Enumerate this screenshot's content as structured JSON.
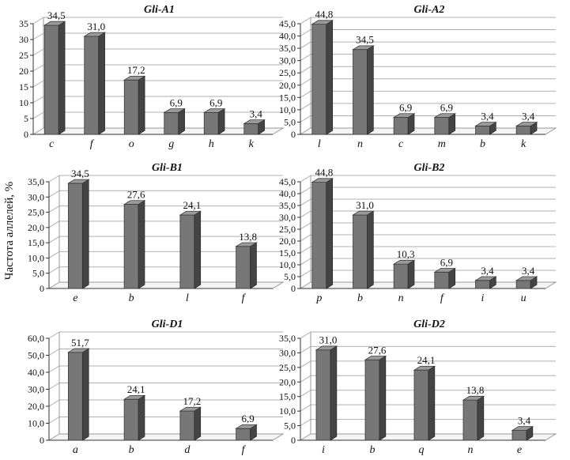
{
  "figure": {
    "ylabel": "Частота аллелей, %"
  },
  "chart_data": [
    {
      "type": "bar",
      "title": "Gli-A1",
      "categories": [
        "c",
        "f",
        "o",
        "g",
        "h",
        "k"
      ],
      "values": [
        34.5,
        31.0,
        17.2,
        6.9,
        6.9,
        3.4
      ],
      "value_labels": [
        "34,5",
        "31,0",
        "17,2",
        "6,9",
        "6,9",
        "3,4"
      ],
      "ylim": [
        0,
        35
      ],
      "yticks": [
        0,
        5,
        10,
        15,
        20,
        25,
        30,
        35
      ],
      "ytick_labels": [
        "0",
        "5",
        "10",
        "15",
        "20",
        "25",
        "30",
        "35"
      ],
      "grid": true,
      "color": "#7a7a7a"
    },
    {
      "type": "bar",
      "title": "Gli-A2",
      "categories": [
        "l",
        "n",
        "c",
        "m",
        "b",
        "k"
      ],
      "values": [
        44.8,
        34.5,
        6.9,
        6.9,
        3.4,
        3.4
      ],
      "value_labels": [
        "44,8",
        "34,5",
        "6,9",
        "6,9",
        "3,4",
        "3,4"
      ],
      "ylim": [
        0,
        45
      ],
      "yticks": [
        0,
        5,
        10,
        15,
        20,
        25,
        30,
        35,
        40,
        45
      ],
      "ytick_labels": [
        "0",
        "5,0",
        "10,0",
        "15,0",
        "20,0",
        "25,0",
        "30,0",
        "35,0",
        "40,0",
        "45,0"
      ],
      "grid": true,
      "color": "#7a7a7a"
    },
    {
      "type": "bar",
      "title": "Gli-B1",
      "categories": [
        "e",
        "b",
        "l",
        "f"
      ],
      "values": [
        34.5,
        27.6,
        24.1,
        13.8
      ],
      "value_labels": [
        "34,5",
        "27,6",
        "24,1",
        "13,8"
      ],
      "ylim": [
        0,
        35
      ],
      "yticks": [
        0,
        5,
        10,
        15,
        20,
        25,
        30,
        35
      ],
      "ytick_labels": [
        "0",
        "5,0",
        "10,0",
        "15,0",
        "20,0",
        "25,0",
        "30,0",
        "35,0"
      ],
      "grid": true,
      "color": "#7a7a7a"
    },
    {
      "type": "bar",
      "title": "Gli-B2",
      "categories": [
        "p",
        "b",
        "n",
        "f",
        "i",
        "u"
      ],
      "values": [
        44.8,
        31.0,
        10.3,
        6.9,
        3.4,
        3.4
      ],
      "value_labels": [
        "44,8",
        "31,0",
        "10,3",
        "6,9",
        "3,4",
        "3,4"
      ],
      "ylim": [
        0,
        45
      ],
      "yticks": [
        0,
        5,
        10,
        15,
        20,
        25,
        30,
        35,
        40,
        45
      ],
      "ytick_labels": [
        "0",
        "5,0",
        "10,0",
        "15,0",
        "20,0",
        "25,0",
        "30,0",
        "35,0",
        "40,0",
        "45,0"
      ],
      "grid": true,
      "color": "#7a7a7a"
    },
    {
      "type": "bar",
      "title": "Gli-D1",
      "categories": [
        "a",
        "b",
        "d",
        "f"
      ],
      "values": [
        51.7,
        24.1,
        17.2,
        6.9
      ],
      "value_labels": [
        "51,7",
        "24,1",
        "17,2",
        "6,9"
      ],
      "ylim": [
        0,
        60
      ],
      "yticks": [
        0,
        10,
        20,
        30,
        40,
        50,
        60
      ],
      "ytick_labels": [
        "0",
        "10,0",
        "20,0",
        "30,0",
        "40,0",
        "50,0",
        "60,0"
      ],
      "grid": true,
      "color": "#7a7a7a"
    },
    {
      "type": "bar",
      "title": "Gli-D2",
      "categories": [
        "i",
        "b",
        "q",
        "n",
        "e"
      ],
      "values": [
        31.0,
        27.6,
        24.1,
        13.8,
        3.4
      ],
      "value_labels": [
        "31,0",
        "27,6",
        "24,1",
        "13,8",
        "3,4"
      ],
      "ylim": [
        0,
        35
      ],
      "yticks": [
        0,
        5,
        10,
        15,
        20,
        25,
        30,
        35
      ],
      "ytick_labels": [
        "0",
        "5,0",
        "10,0",
        "15,0",
        "20,0",
        "25,0",
        "30,0",
        "35,0"
      ],
      "grid": true,
      "color": "#7a7a7a"
    }
  ]
}
